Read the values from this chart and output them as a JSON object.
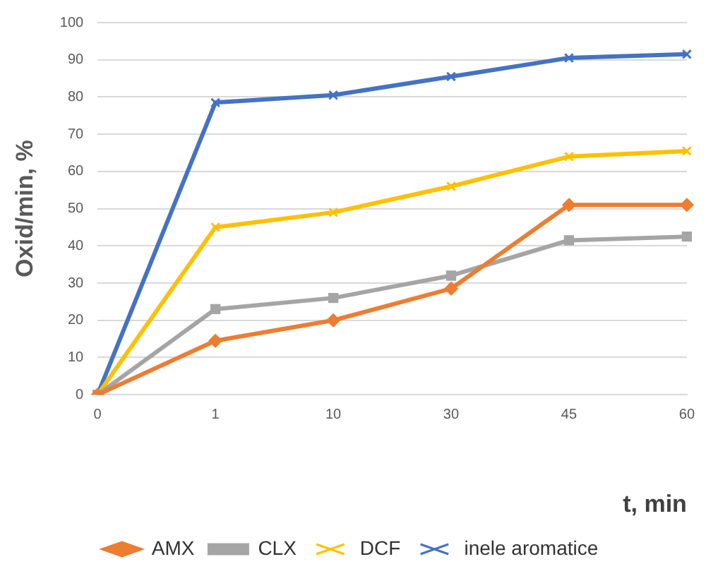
{
  "chart_data": {
    "type": "line",
    "xlabel": "t, min",
    "ylabel": "Oxid/min, %",
    "categories": [
      "0",
      "1",
      "10",
      "30",
      "45",
      "60"
    ],
    "series": [
      {
        "name": "AMX",
        "color": "#ed7d31",
        "marker": "diamond",
        "values": [
          0,
          14.5,
          20,
          28.5,
          51,
          51
        ]
      },
      {
        "name": "CLX",
        "color": "#a5a5a5",
        "marker": "square",
        "values": [
          0,
          23,
          26,
          32,
          41.5,
          42.5
        ]
      },
      {
        "name": "DCF",
        "color": "#ffc000",
        "marker": "cross",
        "values": [
          0,
          45,
          49,
          56,
          64,
          65.5
        ]
      },
      {
        "name": "inele aromatice",
        "color": "#4472c4",
        "marker": "cross",
        "values": [
          0,
          78.5,
          80.5,
          85.5,
          90.5,
          91.5
        ]
      }
    ],
    "ylim": [
      0,
      100
    ],
    "yticks": [
      0,
      10,
      20,
      30,
      40,
      50,
      60,
      70,
      80,
      90,
      100
    ],
    "grid": "y",
    "legend": "bottom"
  }
}
